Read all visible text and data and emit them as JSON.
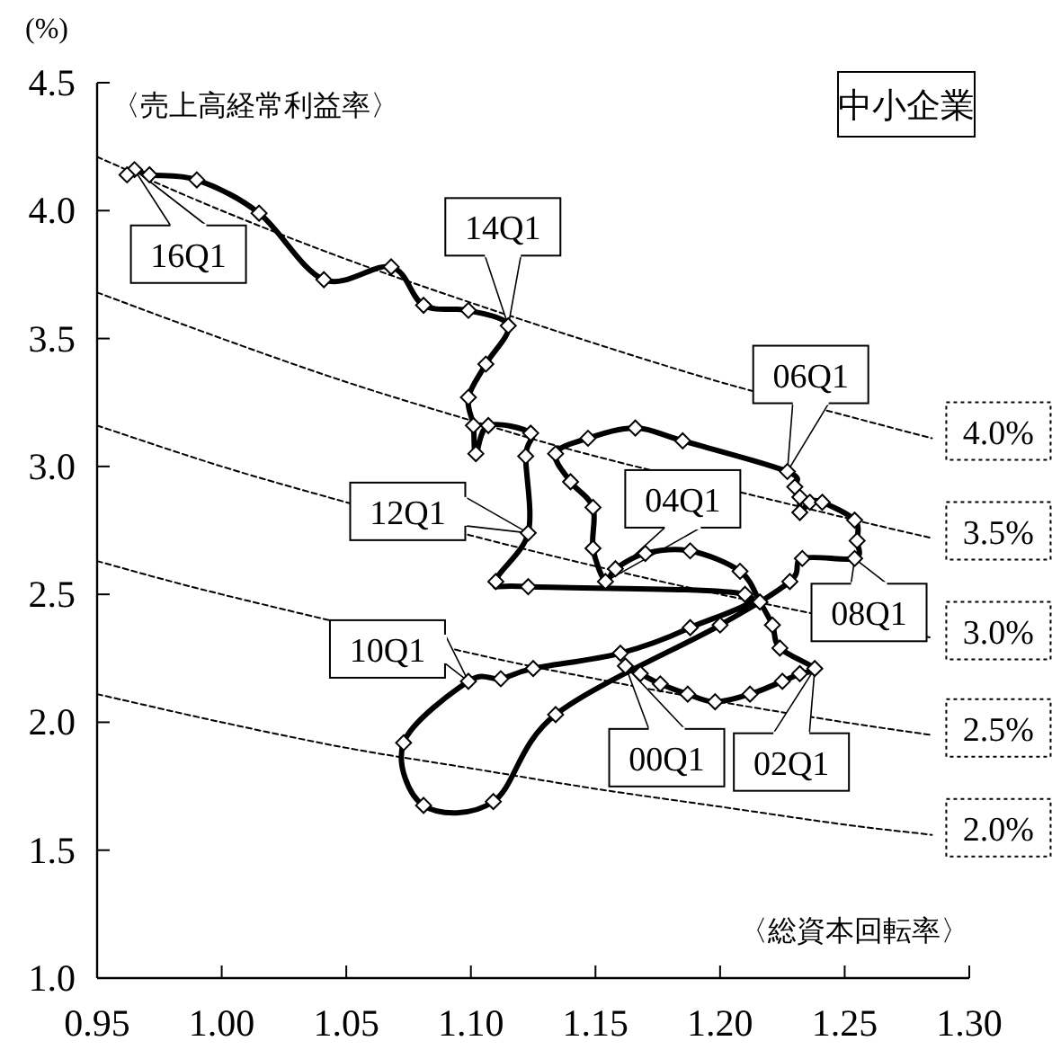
{
  "chart_data": {
    "type": "line",
    "title": "中小企業",
    "xlabel": "〈総資本回転率〉",
    "ylabel": "〈売上高経常利益率〉",
    "annotations": [
      "(%)",
      {
        "text": "00Q1",
        "x": 1.162,
        "y": 2.22
      },
      {
        "text": "02Q1",
        "x": 1.238,
        "y": 2.21
      },
      {
        "text": "04Q1",
        "x": 1.154,
        "y": 2.55
      },
      {
        "text": "06Q1",
        "x": 1.227,
        "y": 2.98
      },
      {
        "text": "08Q1",
        "x": 1.254,
        "y": 2.64
      },
      {
        "text": "10Q1",
        "x": 1.099,
        "y": 2.16
      },
      {
        "text": "12Q1",
        "x": 1.123,
        "y": 2.74
      },
      {
        "text": "14Q1",
        "x": 1.115,
        "y": 3.55
      },
      {
        "text": "16Q1",
        "x": 0.965,
        "y": 4.16
      }
    ],
    "xlim": [
      0.95,
      1.3
    ],
    "ylim": [
      1.0,
      4.5
    ],
    "xticks": [
      {
        "value": 0.95,
        "label": "0.95"
      },
      {
        "value": 1.0,
        "label": "1.00"
      },
      {
        "value": 1.05,
        "label": "1.05"
      },
      {
        "value": 1.1,
        "label": "1.10"
      },
      {
        "value": 1.15,
        "label": "1.15"
      },
      {
        "value": 1.2,
        "label": "1.20"
      },
      {
        "value": 1.25,
        "label": "1.25"
      },
      {
        "value": 1.3,
        "label": "1.30"
      }
    ],
    "yticks": [
      {
        "value": 1.0,
        "label": "1.0"
      },
      1.5,
      {
        "value": 2.0,
        "label": "2.0"
      },
      2.5,
      {
        "value": 3.0,
        "label": "3.0"
      },
      3.5,
      {
        "value": 4.0,
        "label": "4.0"
      },
      4.5
    ],
    "series": [
      {
        "name": "4.0%",
        "line_style": "dashed",
        "color": "#000000",
        "x": [
          0.95,
          1.0,
          1.05,
          1.1,
          1.15,
          1.2,
          1.25,
          1.285
        ],
        "values": [
          4.21,
          4.0,
          3.81,
          3.64,
          3.48,
          3.33,
          3.2,
          3.11
        ]
      },
      {
        "name": "3.5%",
        "line_style": "dashed",
        "color": "#000000",
        "x": [
          0.95,
          1.0,
          1.05,
          1.1,
          1.15,
          1.25,
          1.285
        ],
        "values": [
          3.68,
          3.5,
          3.33,
          3.18,
          3.04,
          2.8,
          2.72
        ]
      },
      {
        "name": "3.0%",
        "line_style": "dashed",
        "color": "#000000",
        "x": [
          0.95,
          1.0,
          1.05,
          1.1,
          1.15,
          1.2,
          1.285
        ],
        "values": [
          3.16,
          3.0,
          2.86,
          2.73,
          2.61,
          2.5,
          2.33
        ]
      },
      {
        "name": "2.5%",
        "line_style": "dashed",
        "color": "#000000",
        "x": [
          0.95,
          1.0,
          1.1,
          1.15,
          1.2,
          1.25,
          1.285
        ],
        "values": [
          2.63,
          2.5,
          2.27,
          2.17,
          2.08,
          2.0,
          1.95
        ]
      },
      {
        "name": "2.0%",
        "line_style": "dashed",
        "color": "#000000",
        "x": [
          0.95,
          1.0,
          1.05,
          1.1,
          1.15,
          1.2,
          1.25,
          1.285
        ],
        "values": [
          2.11,
          2.0,
          1.9,
          1.82,
          1.74,
          1.67,
          1.6,
          1.56
        ]
      },
      {
        "marker": "diamond",
        "line_style": "solid",
        "color": "#000000",
        "x": [
          1.162,
          1.168,
          1.176,
          1.187,
          1.198,
          1.212,
          1.225,
          1.232,
          1.238,
          1.224,
          1.221,
          1.216,
          1.208,
          1.188,
          1.17,
          1.158,
          1.154,
          1.149,
          1.149,
          1.14,
          1.134,
          1.147,
          1.166,
          1.185,
          1.227,
          1.23,
          1.232,
          1.232,
          1.236,
          1.241,
          1.254,
          1.255,
          1.254,
          1.233,
          1.228,
          1.2,
          1.134,
          1.109,
          1.081,
          1.073,
          1.099,
          1.112,
          1.125,
          1.16,
          1.188,
          1.21,
          1.123,
          1.11,
          1.123,
          1.122,
          1.124,
          1.107,
          1.102,
          1.101,
          1.099,
          1.106,
          1.115,
          1.099,
          1.081,
          1.068,
          1.041,
          1.015,
          0.99,
          0.971,
          0.965,
          0.962
        ],
        "values": [
          2.22,
          2.19,
          2.15,
          2.11,
          2.08,
          2.11,
          2.16,
          2.19,
          2.21,
          2.29,
          2.38,
          2.47,
          2.59,
          2.67,
          2.66,
          2.6,
          2.55,
          2.68,
          2.84,
          2.94,
          3.05,
          3.11,
          3.15,
          3.1,
          2.98,
          2.92,
          2.88,
          2.82,
          2.86,
          2.86,
          2.79,
          2.71,
          2.64,
          2.64,
          2.55,
          2.38,
          2.03,
          1.69,
          1.675,
          1.92,
          2.16,
          2.17,
          2.21,
          2.27,
          2.37,
          2.5,
          2.53,
          2.55,
          2.74,
          3.04,
          3.13,
          3.16,
          3.05,
          3.16,
          3.27,
          3.4,
          3.55,
          3.61,
          3.63,
          3.78,
          3.73,
          3.99,
          4.12,
          4.14,
          4.16,
          4.14
        ]
      }
    ]
  }
}
